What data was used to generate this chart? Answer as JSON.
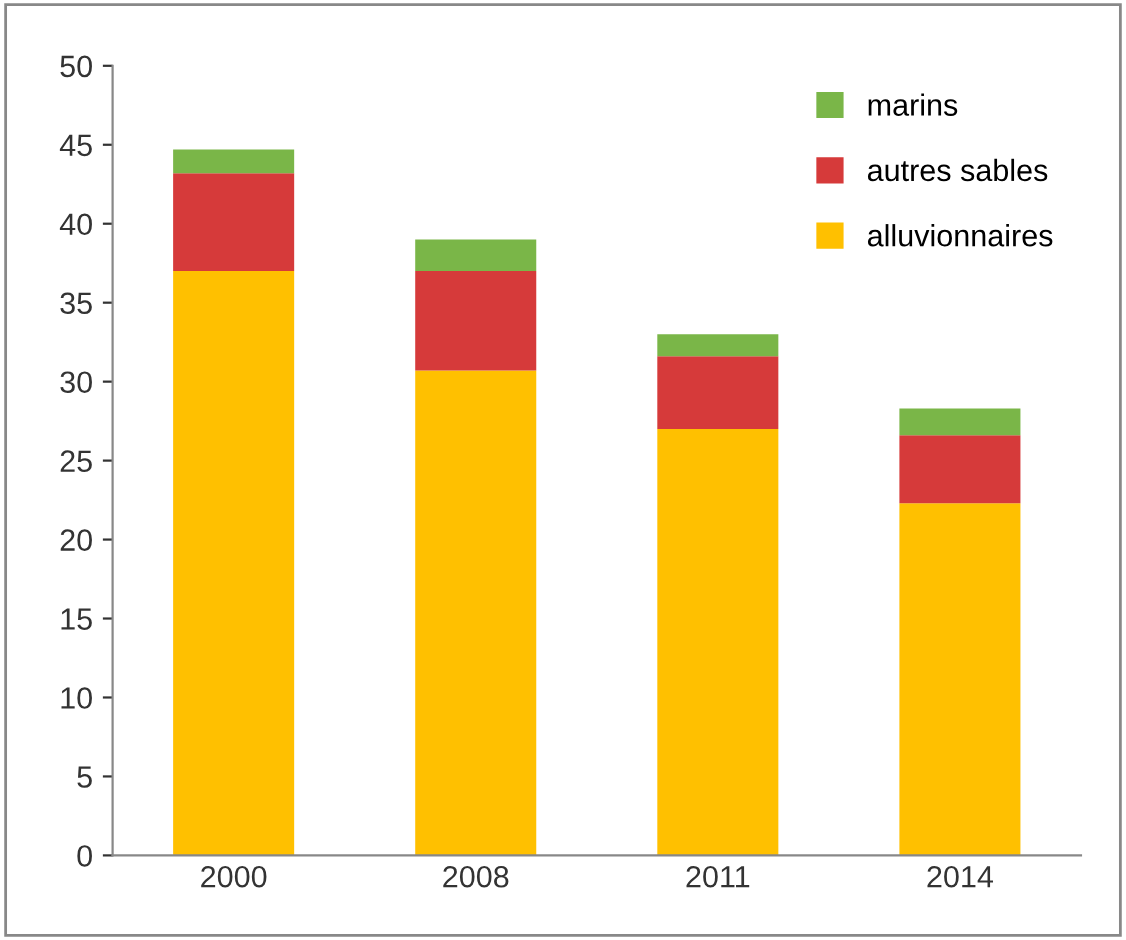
{
  "chart_data": {
    "type": "bar",
    "stacked": true,
    "categories": [
      "2000",
      "2008",
      "2011",
      "2014"
    ],
    "series": [
      {
        "name": "alluvionnaires",
        "color": "#ffc000",
        "values": [
          37,
          30.7,
          27,
          22.3
        ]
      },
      {
        "name": "autres sables",
        "color": "#d63a3a",
        "values": [
          6.2,
          6.3,
          4.6,
          4.3
        ]
      },
      {
        "name": "marins",
        "color": "#7ab648",
        "values": [
          1.5,
          2,
          1.4,
          1.7
        ]
      }
    ],
    "ylim": [
      0,
      50
    ],
    "yticks": [
      0,
      5,
      10,
      15,
      20,
      25,
      30,
      35,
      40,
      45,
      50
    ],
    "grid": false,
    "legend": "top right"
  }
}
